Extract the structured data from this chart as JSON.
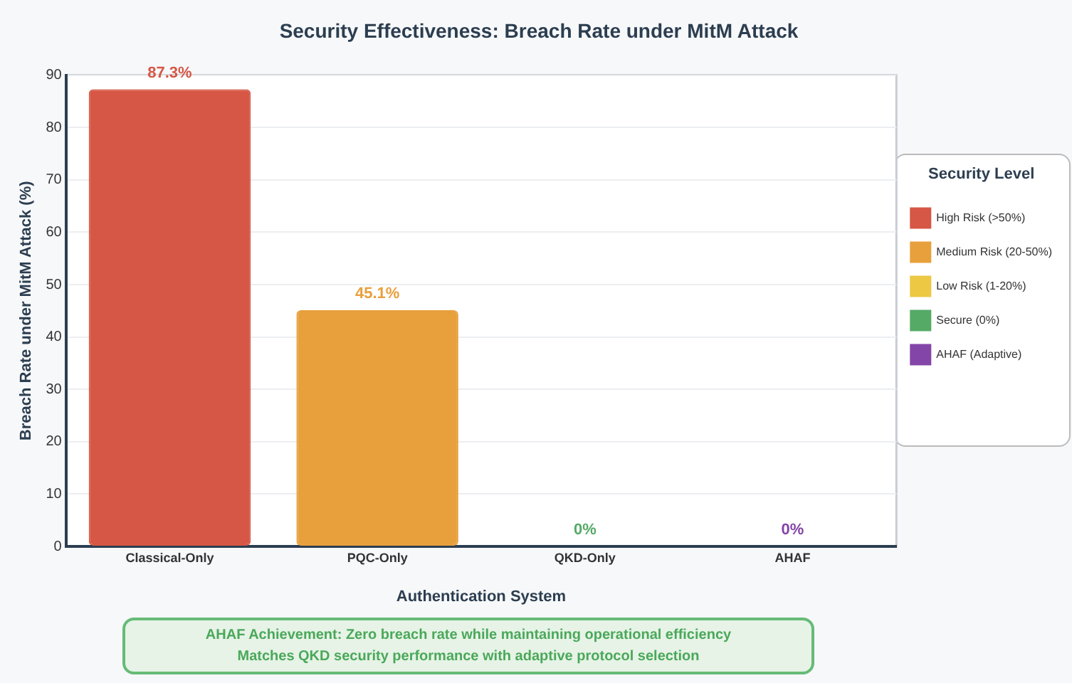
{
  "chart_data": {
    "type": "bar",
    "title": "Security Effectiveness: Breach Rate under MitM Attack",
    "xlabel": "Authentication System",
    "ylabel": "Breach Rate under MitM Attack (%)",
    "legend_title": "Security Level",
    "legend": "right",
    "stacked": true,
    "grid": "y",
    "categories": [
      "Classical-Only",
      "PQC-Only",
      "QKD-Only",
      "AHAF"
    ],
    "series": [
      {
        "name": "High Risk (>50%)",
        "color": "#d65745",
        "values": [
          87.3,
          null,
          null,
          null
        ],
        "value_labels": [
          "87.3%",
          null,
          null,
          null
        ]
      },
      {
        "name": "Medium Risk (20-50%)",
        "color": "#e8a03c",
        "values": [
          null,
          45.1,
          null,
          null
        ],
        "value_labels": [
          null,
          "45.1%",
          null,
          null
        ]
      },
      {
        "name": "Low Risk (1-20%)",
        "color": "#ecc843",
        "values": [
          null,
          null,
          null,
          null
        ]
      },
      {
        "name": "Secure (0%)",
        "color": "#55aa66",
        "values": [
          null,
          null,
          0,
          null
        ],
        "value_labels": [
          null,
          null,
          "0%",
          null
        ]
      },
      {
        "name": "AHAF (Adaptive)",
        "color": "#8445a8",
        "values": [
          null,
          null,
          null,
          0
        ],
        "value_labels": [
          null,
          null,
          null,
          "0%"
        ]
      }
    ],
    "ylim": [
      0,
      90
    ],
    "yticks": [
      0,
      10,
      20,
      30,
      40,
      50,
      60,
      70,
      80,
      90
    ],
    "annotations": [
      "AHAF Achievement: Zero breach rate while maintaining operational efficiency",
      "Matches QKD security performance with adaptive protocol selection"
    ]
  }
}
